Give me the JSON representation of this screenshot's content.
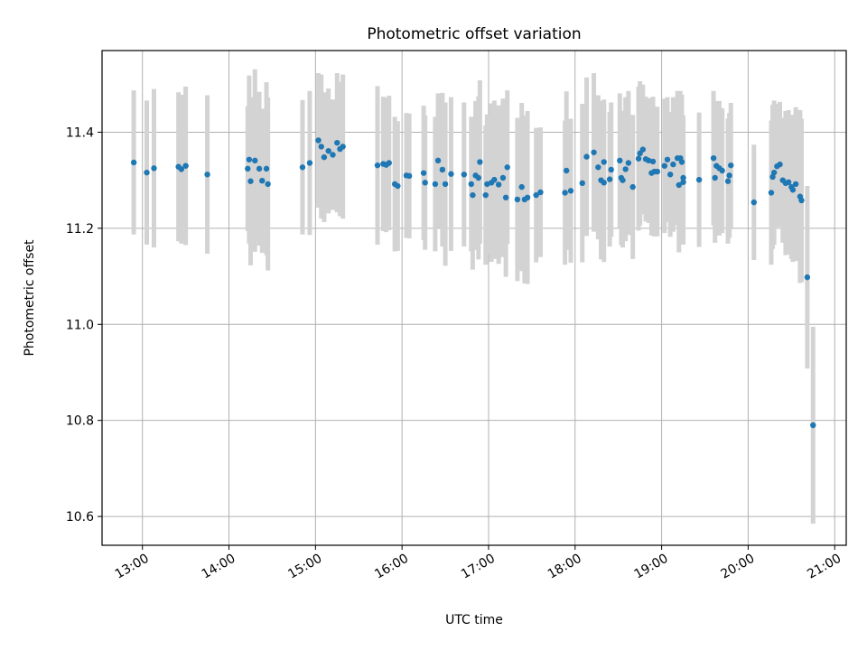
{
  "chart_data": {
    "type": "scatter",
    "title": "Photometric offset variation",
    "xlabel": "UTC time",
    "ylabel": "Photometric offset",
    "x_ticks": [
      "13:00",
      "14:00",
      "15:00",
      "16:00",
      "17:00",
      "18:00",
      "19:00",
      "20:00",
      "21:00"
    ],
    "y_ticks": [
      "10.6",
      "10.8",
      "11.0",
      "11.2",
      "11.4"
    ],
    "xlim": [
      "12:32",
      "21:08"
    ],
    "ylim": [
      10.54,
      11.57
    ],
    "grid": true,
    "colors": {
      "marker": "#1f77b4",
      "errorbar": "#d3d3d3"
    },
    "series": [
      {
        "points": [
          {
            "t": "12:54",
            "y": 11.337,
            "err": 0.15
          },
          {
            "t": "13:03",
            "y": 11.316,
            "err": 0.15
          },
          {
            "t": "13:08",
            "y": 11.325,
            "err": 0.165
          },
          {
            "t": "13:25",
            "y": 11.328,
            "err": 0.155
          },
          {
            "t": "13:27",
            "y": 11.323,
            "err": 0.155
          },
          {
            "t": "13:30",
            "y": 11.33,
            "err": 0.165
          },
          {
            "t": "13:45",
            "y": 11.312,
            "err": 0.165
          },
          {
            "t": "14:13",
            "y": 11.324,
            "err": 0.13
          },
          {
            "t": "14:14",
            "y": 11.343,
            "err": 0.175
          },
          {
            "t": "14:15",
            "y": 11.298,
            "err": 0.175
          },
          {
            "t": "14:18",
            "y": 11.341,
            "err": 0.19
          },
          {
            "t": "14:21",
            "y": 11.324,
            "err": 0.16
          },
          {
            "t": "14:23",
            "y": 11.299,
            "err": 0.15
          },
          {
            "t": "14:26",
            "y": 11.324,
            "err": 0.18
          },
          {
            "t": "14:27",
            "y": 11.292,
            "err": 0.18
          },
          {
            "t": "14:51",
            "y": 11.327,
            "err": 0.14
          },
          {
            "t": "14:56",
            "y": 11.336,
            "err": 0.15
          },
          {
            "t": "15:02",
            "y": 11.383,
            "err": 0.14
          },
          {
            "t": "15:04",
            "y": 11.37,
            "err": 0.15
          },
          {
            "t": "15:06",
            "y": 11.348,
            "err": 0.135
          },
          {
            "t": "15:09",
            "y": 11.361,
            "err": 0.13
          },
          {
            "t": "15:12",
            "y": 11.353,
            "err": 0.115
          },
          {
            "t": "15:15",
            "y": 11.378,
            "err": 0.145
          },
          {
            "t": "15:17",
            "y": 11.365,
            "err": 0.14
          },
          {
            "t": "15:19",
            "y": 11.37,
            "err": 0.15
          },
          {
            "t": "15:43",
            "y": 11.331,
            "err": 0.165
          },
          {
            "t": "15:47",
            "y": 11.334,
            "err": 0.14
          },
          {
            "t": "15:49",
            "y": 11.332,
            "err": 0.14
          },
          {
            "t": "15:51",
            "y": 11.336,
            "err": 0.14
          },
          {
            "t": "15:55",
            "y": 11.292,
            "err": 0.14
          },
          {
            "t": "15:57",
            "y": 11.288,
            "err": 0.135
          },
          {
            "t": "16:03",
            "y": 11.31,
            "err": 0.13
          },
          {
            "t": "16:05",
            "y": 11.309,
            "err": 0.13
          },
          {
            "t": "16:15",
            "y": 11.315,
            "err": 0.14
          },
          {
            "t": "16:16",
            "y": 11.295,
            "err": 0.14
          },
          {
            "t": "16:23",
            "y": 11.292,
            "err": 0.14
          },
          {
            "t": "16:25",
            "y": 11.341,
            "err": 0.14
          },
          {
            "t": "16:28",
            "y": 11.322,
            "err": 0.16
          },
          {
            "t": "16:30",
            "y": 11.292,
            "err": 0.17
          },
          {
            "t": "16:34",
            "y": 11.313,
            "err": 0.16
          },
          {
            "t": "16:43",
            "y": 11.312,
            "err": 0.15
          },
          {
            "t": "16:48",
            "y": 11.292,
            "err": 0.14
          },
          {
            "t": "16:49",
            "y": 11.269,
            "err": 0.155
          },
          {
            "t": "16:51",
            "y": 11.31,
            "err": 0.155
          },
          {
            "t": "16:53",
            "y": 11.305,
            "err": 0.17
          },
          {
            "t": "16:54",
            "y": 11.338,
            "err": 0.17
          },
          {
            "t": "16:58",
            "y": 11.269,
            "err": 0.145
          },
          {
            "t": "16:59",
            "y": 11.292,
            "err": 0.145
          },
          {
            "t": "17:02",
            "y": 11.295,
            "err": 0.165
          },
          {
            "t": "17:04",
            "y": 11.301,
            "err": 0.165
          },
          {
            "t": "17:07",
            "y": 11.291,
            "err": 0.165
          },
          {
            "t": "17:10",
            "y": 11.305,
            "err": 0.165
          },
          {
            "t": "17:12",
            "y": 11.264,
            "err": 0.165
          },
          {
            "t": "17:13",
            "y": 11.327,
            "err": 0.16
          },
          {
            "t": "17:20",
            "y": 11.26,
            "err": 0.17
          },
          {
            "t": "17:23",
            "y": 11.286,
            "err": 0.175
          },
          {
            "t": "17:25",
            "y": 11.26,
            "err": 0.175
          },
          {
            "t": "17:27",
            "y": 11.264,
            "err": 0.18
          },
          {
            "t": "17:33",
            "y": 11.269,
            "err": 0.14
          },
          {
            "t": "17:36",
            "y": 11.275,
            "err": 0.135
          },
          {
            "t": "17:53",
            "y": 11.274,
            "err": 0.15
          },
          {
            "t": "17:54",
            "y": 11.32,
            "err": 0.165
          },
          {
            "t": "17:57",
            "y": 11.278,
            "err": 0.15
          },
          {
            "t": "18:05",
            "y": 11.294,
            "err": 0.165
          },
          {
            "t": "18:08",
            "y": 11.349,
            "err": 0.165
          },
          {
            "t": "18:13",
            "y": 11.358,
            "err": 0.165
          },
          {
            "t": "18:16",
            "y": 11.327,
            "err": 0.15
          },
          {
            "t": "18:18",
            "y": 11.3,
            "err": 0.165
          },
          {
            "t": "18:20",
            "y": 11.295,
            "err": 0.165
          },
          {
            "t": "18:20",
            "y": 11.338,
            "err": 0.13
          },
          {
            "t": "18:24",
            "y": 11.302,
            "err": 0.14
          },
          {
            "t": "18:25",
            "y": 11.322,
            "err": 0.14
          },
          {
            "t": "18:31",
            "y": 11.341,
            "err": 0.14
          },
          {
            "t": "18:32",
            "y": 11.305,
            "err": 0.14
          },
          {
            "t": "18:33",
            "y": 11.3,
            "err": 0.14
          },
          {
            "t": "18:35",
            "y": 11.323,
            "err": 0.15
          },
          {
            "t": "18:37",
            "y": 11.336,
            "err": 0.15
          },
          {
            "t": "18:40",
            "y": 11.286,
            "err": 0.15
          },
          {
            "t": "18:44",
            "y": 11.345,
            "err": 0.15
          },
          {
            "t": "18:45",
            "y": 11.356,
            "err": 0.15
          },
          {
            "t": "18:47",
            "y": 11.364,
            "err": 0.135
          },
          {
            "t": "18:49",
            "y": 11.344,
            "err": 0.13
          },
          {
            "t": "18:51",
            "y": 11.341,
            "err": 0.13
          },
          {
            "t": "18:53",
            "y": 11.315,
            "err": 0.13
          },
          {
            "t": "18:54",
            "y": 11.339,
            "err": 0.135
          },
          {
            "t": "18:55",
            "y": 11.318,
            "err": 0.135
          },
          {
            "t": "18:57",
            "y": 11.318,
            "err": 0.135
          },
          {
            "t": "19:02",
            "y": 11.33,
            "err": 0.14
          },
          {
            "t": "19:04",
            "y": 11.343,
            "err": 0.13
          },
          {
            "t": "19:06",
            "y": 11.312,
            "err": 0.13
          },
          {
            "t": "19:08",
            "y": 11.333,
            "err": 0.14
          },
          {
            "t": "19:11",
            "y": 11.346,
            "err": 0.14
          },
          {
            "t": "19:12",
            "y": 11.29,
            "err": 0.14
          },
          {
            "t": "19:13",
            "y": 11.346,
            "err": 0.14
          },
          {
            "t": "19:14",
            "y": 11.338,
            "err": 0.14
          },
          {
            "t": "19:15",
            "y": 11.296,
            "err": 0.13
          },
          {
            "t": "19:15",
            "y": 11.305,
            "err": 0.13
          },
          {
            "t": "19:26",
            "y": 11.301,
            "err": 0.14
          },
          {
            "t": "19:36",
            "y": 11.346,
            "err": 0.14
          },
          {
            "t": "19:37",
            "y": 11.305,
            "err": 0.135
          },
          {
            "t": "19:38",
            "y": 11.33,
            "err": 0.135
          },
          {
            "t": "19:40",
            "y": 11.325,
            "err": 0.14
          },
          {
            "t": "19:42",
            "y": 11.32,
            "err": 0.13
          },
          {
            "t": "19:46",
            "y": 11.298,
            "err": 0.13
          },
          {
            "t": "19:47",
            "y": 11.31,
            "err": 0.13
          },
          {
            "t": "19:48",
            "y": 11.331,
            "err": 0.13
          },
          {
            "t": "20:04",
            "y": 11.254,
            "err": 0.12
          },
          {
            "t": "20:16",
            "y": 11.274,
            "err": 0.15
          },
          {
            "t": "20:17",
            "y": 11.307,
            "err": 0.15
          },
          {
            "t": "20:18",
            "y": 11.316,
            "err": 0.15
          },
          {
            "t": "20:20",
            "y": 11.329,
            "err": 0.13
          },
          {
            "t": "20:22",
            "y": 11.333,
            "err": 0.13
          },
          {
            "t": "20:24",
            "y": 11.3,
            "err": 0.13
          },
          {
            "t": "20:26",
            "y": 11.294,
            "err": 0.15
          },
          {
            "t": "20:28",
            "y": 11.296,
            "err": 0.15
          },
          {
            "t": "20:30",
            "y": 11.286,
            "err": 0.15
          },
          {
            "t": "20:31",
            "y": 11.28,
            "err": 0.15
          },
          {
            "t": "20:33",
            "y": 11.292,
            "err": 0.16
          },
          {
            "t": "20:36",
            "y": 11.266,
            "err": 0.18
          },
          {
            "t": "20:37",
            "y": 11.258,
            "err": 0.17
          },
          {
            "t": "20:41",
            "y": 11.098,
            "err": 0.19
          },
          {
            "t": "20:45",
            "y": 10.79,
            "err": 0.205
          }
        ]
      }
    ]
  }
}
